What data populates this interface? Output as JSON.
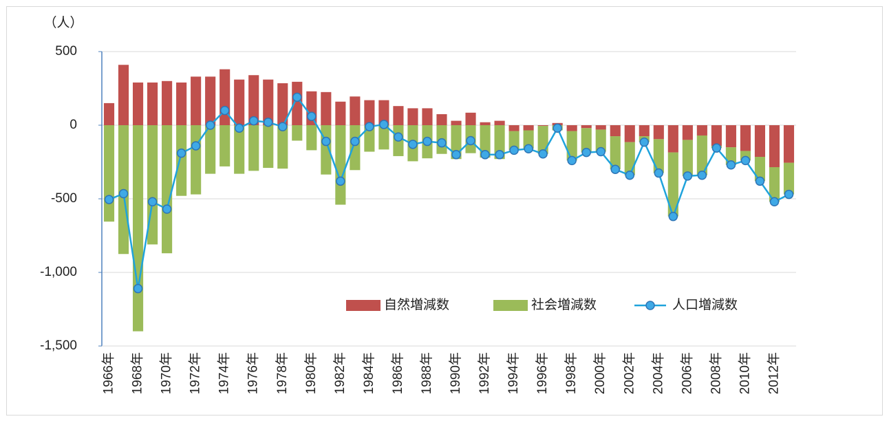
{
  "chart_data": {
    "type": "stacked_bar_line",
    "y_label": "（人）",
    "categories": [
      "1966年",
      null,
      "1968年",
      null,
      "1970年",
      null,
      "1972年",
      null,
      "1974年",
      null,
      "1976年",
      null,
      "1978年",
      null,
      "1980年",
      null,
      "1982年",
      null,
      "1984年",
      null,
      "1986年",
      null,
      "1988年",
      null,
      "1990年",
      null,
      "1992年",
      null,
      "1994年",
      null,
      "1996年",
      null,
      "1998年",
      null,
      "2000年",
      null,
      "2002年",
      null,
      "2004年",
      null,
      "2006年",
      null,
      "2008年",
      null,
      "2010年",
      null,
      "2012年",
      null
    ],
    "series": [
      {
        "name": "自然増減数",
        "type": "bar",
        "color": "#c0504d",
        "values": [
          150,
          410,
          290,
          290,
          300,
          290,
          330,
          330,
          380,
          310,
          340,
          310,
          285,
          295,
          230,
          225,
          160,
          195,
          170,
          170,
          130,
          115,
          115,
          75,
          30,
          85,
          20,
          30,
          -40,
          -35,
          -5,
          15,
          -40,
          -20,
          -30,
          -75,
          -115,
          -75,
          -95,
          -185,
          -100,
          -70,
          -140,
          -150,
          -175,
          -215,
          -285,
          -255
        ]
      },
      {
        "name": "社会増減数",
        "type": "bar",
        "color": "#9bbb59",
        "values": [
          -655,
          -875,
          -1400,
          -810,
          -870,
          -480,
          -470,
          -330,
          -280,
          -330,
          -310,
          -290,
          -295,
          -105,
          -170,
          -335,
          -540,
          -305,
          -180,
          -165,
          -210,
          -245,
          -225,
          -195,
          -230,
          -190,
          -220,
          -230,
          -130,
          -125,
          -190,
          -35,
          -200,
          -165,
          -150,
          -225,
          -225,
          -40,
          -230,
          -435,
          -245,
          -270,
          -15,
          -120,
          -65,
          -165,
          -235,
          -215
        ]
      },
      {
        "name": "人口増減数",
        "type": "line",
        "color": "#1fa3dc",
        "values": [
          -505,
          -465,
          -1110,
          -520,
          -570,
          -190,
          -140,
          0,
          100,
          -20,
          30,
          20,
          -10,
          190,
          60,
          -110,
          -380,
          -110,
          -10,
          5,
          -80,
          -130,
          -110,
          -120,
          -200,
          -105,
          -200,
          -200,
          -170,
          -160,
          -195,
          -20,
          -240,
          -185,
          -180,
          -300,
          -340,
          -115,
          -325,
          -620,
          -345,
          -340,
          -155,
          -270,
          -240,
          -380,
          -520,
          -470
        ]
      }
    ],
    "ylim": [
      -1500,
      500
    ],
    "yticks": [
      500,
      0,
      -500,
      {
        "value": -1000,
        "label": "-1,000"
      },
      {
        "value": -1500,
        "label": "-1,500"
      }
    ],
    "grid": true
  }
}
